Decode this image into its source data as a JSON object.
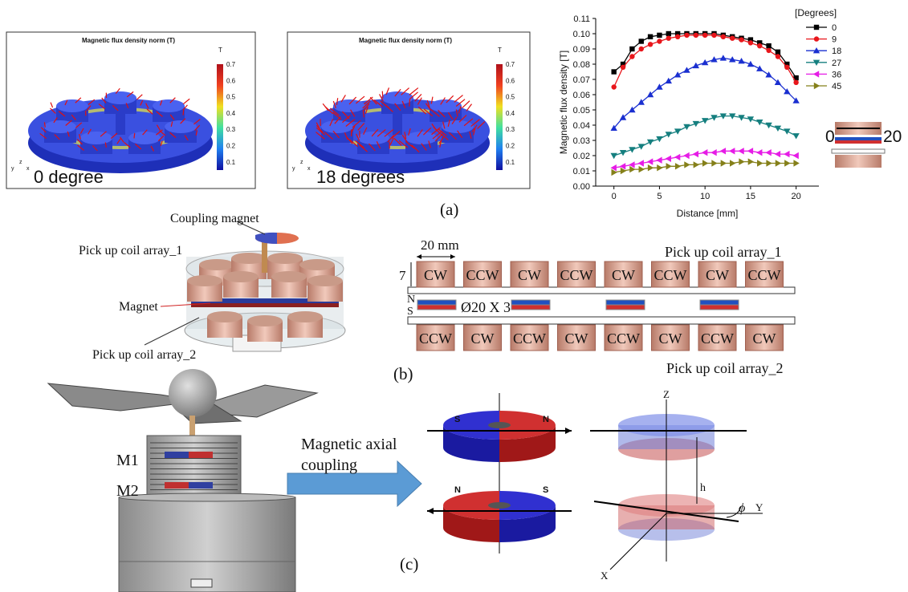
{
  "panel_a": {
    "label": "(a)",
    "maps": [
      {
        "title": "Magnetic flux density norm (T)",
        "unit": "T",
        "ticks": [
          0.7,
          0.6,
          0.5,
          0.4,
          0.3,
          0.2,
          0.1
        ],
        "triad": [
          "y",
          "z",
          "x"
        ],
        "caption": "0 degree"
      },
      {
        "title": "Magnetic flux density norm (T)",
        "unit": "T",
        "ticks": [
          0.7,
          0.6,
          0.5,
          0.4,
          0.3,
          0.2,
          0.1
        ],
        "triad": [
          "y",
          "z",
          "x"
        ],
        "caption": "18 degrees"
      }
    ],
    "inset": {
      "start": "0",
      "end": "20"
    }
  },
  "chart_data": {
    "type": "line",
    "x_label": "Distance [mm]",
    "y_label": "Magnetic flux density [T]",
    "legend_title": "[Degrees]",
    "x": [
      0,
      1,
      2,
      3,
      4,
      5,
      6,
      7,
      8,
      9,
      10,
      11,
      12,
      13,
      14,
      15,
      16,
      17,
      18,
      19,
      20
    ],
    "xlim": [
      -2,
      22.5
    ],
    "xticks": [
      0,
      5,
      10,
      15,
      20
    ],
    "ylim": [
      0,
      0.11
    ],
    "yticks": [
      {
        "value": 0,
        "label": "0.00"
      },
      {
        "value": 0.01,
        "label": "0.01"
      },
      {
        "value": 0.02,
        "label": "0.02"
      },
      {
        "value": 0.03,
        "label": "0.03"
      },
      {
        "value": 0.04,
        "label": "0.04"
      },
      {
        "value": 0.05,
        "label": "0.05"
      },
      {
        "value": 0.06,
        "label": "0.06"
      },
      {
        "value": 0.07,
        "label": "0.07"
      },
      {
        "value": 0.08,
        "label": "0.08"
      },
      {
        "value": 0.09,
        "label": "0.09"
      },
      {
        "value": 0.1,
        "label": "0.10"
      },
      {
        "value": 0.11,
        "label": "0.11"
      }
    ],
    "series": [
      {
        "name": "0",
        "color": "#000000",
        "marker": "square",
        "values": [
          0.075,
          0.08,
          0.09,
          0.095,
          0.098,
          0.099,
          0.1,
          0.1,
          0.1,
          0.1,
          0.1,
          0.1,
          0.099,
          0.098,
          0.097,
          0.096,
          0.094,
          0.092,
          0.088,
          0.08,
          0.071
        ]
      },
      {
        "name": "9",
        "color": "#e8161b",
        "marker": "circle",
        "values": [
          0.065,
          0.078,
          0.085,
          0.09,
          0.093,
          0.095,
          0.097,
          0.098,
          0.099,
          0.099,
          0.099,
          0.099,
          0.098,
          0.097,
          0.096,
          0.094,
          0.092,
          0.089,
          0.085,
          0.078,
          0.068
        ]
      },
      {
        "name": "18",
        "color": "#1a2fd0",
        "marker": "triangle-up",
        "values": [
          0.038,
          0.045,
          0.05,
          0.055,
          0.06,
          0.065,
          0.069,
          0.073,
          0.076,
          0.079,
          0.081,
          0.083,
          0.084,
          0.083,
          0.082,
          0.08,
          0.077,
          0.073,
          0.068,
          0.062,
          0.056
        ]
      },
      {
        "name": "27",
        "color": "#157f7f",
        "marker": "triangle-down",
        "values": [
          0.02,
          0.022,
          0.024,
          0.026,
          0.029,
          0.031,
          0.034,
          0.036,
          0.039,
          0.041,
          0.043,
          0.045,
          0.046,
          0.046,
          0.045,
          0.044,
          0.042,
          0.04,
          0.038,
          0.036,
          0.033
        ]
      },
      {
        "name": "36",
        "color": "#e61ce6",
        "marker": "triangle-left",
        "values": [
          0.012,
          0.013,
          0.014,
          0.015,
          0.016,
          0.017,
          0.018,
          0.019,
          0.02,
          0.021,
          0.022,
          0.022,
          0.023,
          0.023,
          0.023,
          0.023,
          0.022,
          0.022,
          0.021,
          0.021,
          0.02
        ]
      },
      {
        "name": "45",
        "color": "#85801a",
        "marker": "triangle-right",
        "values": [
          0.009,
          0.01,
          0.011,
          0.011,
          0.012,
          0.012,
          0.013,
          0.013,
          0.014,
          0.014,
          0.015,
          0.015,
          0.015,
          0.015,
          0.016,
          0.016,
          0.015,
          0.015,
          0.015,
          0.015,
          0.015
        ]
      }
    ]
  },
  "panel_b": {
    "label": "(b)",
    "coupling_magnet": "Coupling magnet",
    "coil_array_1": "Pick up coil array_1",
    "magnet": "Magnet",
    "coil_array_2": "Pick up coil array_2",
    "dimension_width": "20 mm",
    "dimension_height": "7",
    "pole_n": "N",
    "pole_s": "S",
    "magnet_size": "Ø20 X 3",
    "top_row": [
      "CW",
      "CCW",
      "CW",
      "CCW",
      "CW",
      "CCW",
      "CW",
      "CCW"
    ],
    "bottom_row": [
      "CCW",
      "CW",
      "CCW",
      "CW",
      "CCW",
      "CW",
      "CCW",
      "CW"
    ],
    "top_row_label": "Pick up coil array_1",
    "bottom_row_label": "Pick up coil array_2"
  },
  "panel_c": {
    "label": "(c)",
    "m1": "M1",
    "m2": "M2",
    "arrow_label": [
      "Magnetic axial",
      "coupling"
    ],
    "poles": [
      "S",
      "N",
      "N",
      "S"
    ],
    "axes": {
      "z": "Z",
      "y": "Y",
      "x": "X"
    },
    "height": "h",
    "angle": "ϕ"
  }
}
